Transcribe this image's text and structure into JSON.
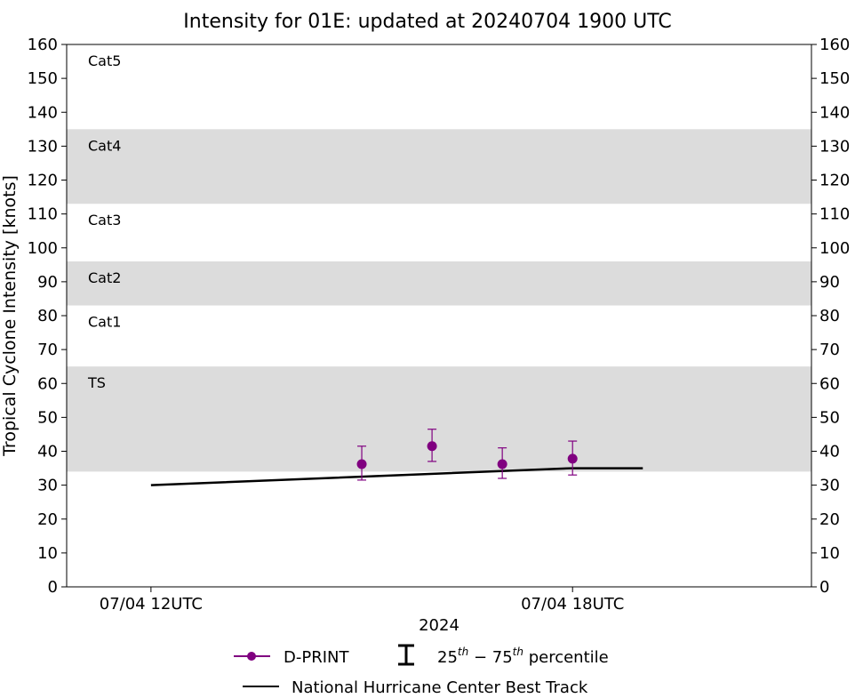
{
  "chart_data": {
    "type": "line",
    "title": "Intensity for 01E: updated at 20240704 1900 UTC",
    "xlabel": "2024",
    "ylabel": "Tropical Cyclone Intensity [knots]",
    "ylim": [
      0,
      160
    ],
    "yticks": [
      0,
      10,
      20,
      30,
      40,
      50,
      60,
      70,
      80,
      90,
      100,
      110,
      120,
      130,
      140,
      150,
      160
    ],
    "xlim": [
      "07/04 10:48UTC",
      "07/04 21:24UTC"
    ],
    "xticks": [
      {
        "x": "07/04 12:00UTC",
        "label": "07/04 12UTC"
      },
      {
        "x": "07/04 18:00UTC",
        "label": "07/04 18UTC"
      }
    ],
    "grid": false,
    "category_bands": [
      {
        "label": "TS",
        "min": 34,
        "max": 65,
        "shaded": true
      },
      {
        "label": "Cat1",
        "min": 65,
        "max": 83,
        "shaded": false
      },
      {
        "label": "Cat2",
        "min": 83,
        "max": 96,
        "shaded": true
      },
      {
        "label": "Cat3",
        "min": 96,
        "max": 113,
        "shaded": false
      },
      {
        "label": "Cat4",
        "min": 113,
        "max": 135,
        "shaded": true
      },
      {
        "label": "Cat5",
        "min": 135,
        "max": 160,
        "shaded": false
      }
    ],
    "series": [
      {
        "name": "D-PRINT",
        "color": "#800080",
        "points": [
          {
            "x": "07/04 15:00UTC",
            "y": 36.2,
            "p25": 31.5,
            "p75": 41.5
          },
          {
            "x": "07/04 16:00UTC",
            "y": 41.5,
            "p25": 37.0,
            "p75": 46.5
          },
          {
            "x": "07/04 17:00UTC",
            "y": 36.2,
            "p25": 32.0,
            "p75": 41.0
          },
          {
            "x": "07/04 18:00UTC",
            "y": 37.8,
            "p25": 33.0,
            "p75": 43.0
          }
        ]
      },
      {
        "name": "National Hurricane Center Best Track",
        "color": "#000000",
        "points": [
          {
            "x": "07/04 12:00UTC",
            "y": 30
          },
          {
            "x": "07/04 18:00UTC",
            "y": 35
          },
          {
            "x": "07/04 19:00UTC",
            "y": 35
          }
        ]
      }
    ],
    "legend": {
      "position": "bottom",
      "dprint_label": "D-PRINT",
      "percentile_label": "25th − 75th percentile",
      "percentile_lo": "25",
      "percentile_hi": "75",
      "percentile_sup": "th",
      "percentile_rest": " percentile",
      "best_track_label": "National Hurricane Center Best Track"
    }
  }
}
